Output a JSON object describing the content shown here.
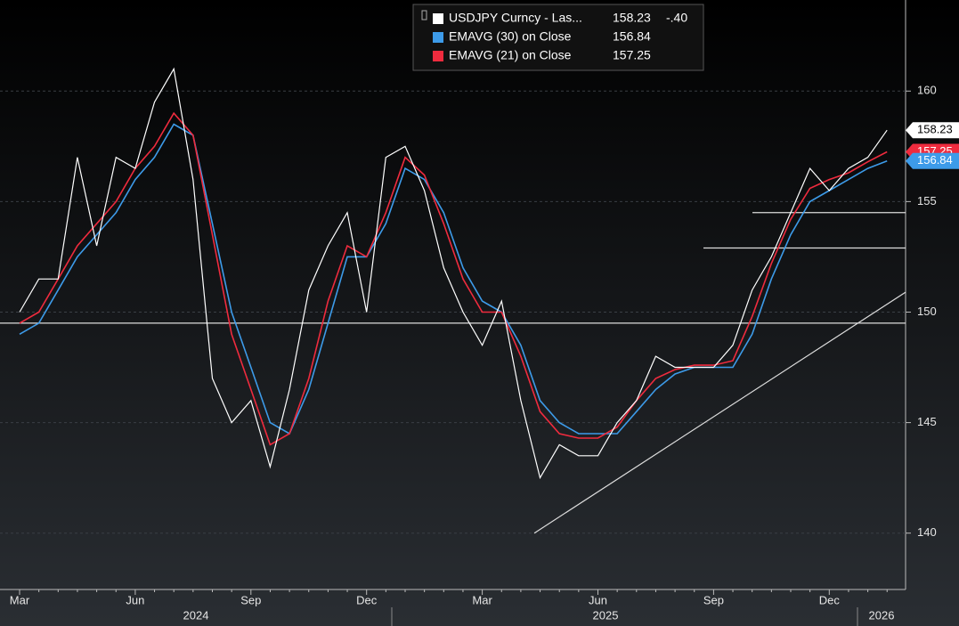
{
  "chart_data": {
    "type": "line",
    "categories": [
      "Mar",
      null,
      null,
      null,
      null,
      null,
      "Jun",
      null,
      null,
      null,
      null,
      null,
      "Sep",
      null,
      null,
      null,
      null,
      null,
      "Dec",
      null,
      null,
      null,
      null,
      null,
      "Mar",
      null,
      null,
      null,
      null,
      null,
      "Jun",
      null,
      null,
      null,
      null,
      null,
      "Sep",
      null,
      null,
      null,
      null,
      null,
      "Dec",
      null,
      null,
      null
    ],
    "years": [
      "2024",
      "2025",
      "2026"
    ],
    "series": [
      {
        "name": "USDJPY Curncy - Las...",
        "color": "#ffffff",
        "change": {
          "value": -0.4,
          "label": "-.40"
        },
        "values": [
          150,
          151.5,
          151.5,
          157,
          153,
          157,
          156.5,
          159.5,
          161,
          156,
          147,
          145,
          146,
          143,
          146.5,
          151,
          153,
          154.5,
          150,
          157,
          157.5,
          155.5,
          152,
          150,
          148.5,
          150.5,
          146,
          142.5,
          144,
          143.5,
          143.5,
          145,
          146,
          148,
          147.5,
          147.5,
          147.5,
          148.5,
          151,
          152.5,
          154.5,
          156.5,
          155.5,
          156.5,
          157,
          158.23
        ]
      },
      {
        "name": "EMAVG (30) on Close",
        "color": "#3d9be9",
        "values": [
          149,
          149.5,
          151,
          152.5,
          153.5,
          154.5,
          156,
          157,
          158.5,
          158,
          154,
          150,
          147.5,
          145,
          144.5,
          146.5,
          149.5,
          152.5,
          152.5,
          154,
          156.5,
          156,
          154.5,
          152,
          150.5,
          150,
          148.5,
          146,
          145,
          144.5,
          144.5,
          144.5,
          145.5,
          146.5,
          147.2,
          147.5,
          147.5,
          147.5,
          149,
          151.5,
          153.5,
          155,
          155.5,
          156,
          156.5,
          156.84
        ]
      },
      {
        "name": "EMAVG (21) on Close",
        "color": "#ef2b3e",
        "values": [
          149.5,
          150,
          151.5,
          153,
          154,
          155,
          156.5,
          157.5,
          159,
          158,
          153.5,
          149,
          146.5,
          144,
          144.5,
          147,
          150.5,
          153,
          152.5,
          154.5,
          157,
          156.2,
          154,
          151.5,
          150,
          150,
          148,
          145.5,
          144.5,
          144.3,
          144.3,
          144.8,
          146,
          147,
          147.4,
          147.6,
          147.6,
          147.8,
          149.8,
          152.2,
          154.2,
          155.6,
          156,
          156.3,
          156.8,
          157.25
        ]
      }
    ],
    "levels": [
      149.5,
      152.9,
      154.5
    ],
    "trendline": [
      140,
      150.9
    ],
    "ylim": [
      137.45,
      164.12
    ],
    "yticks": [
      140,
      145,
      150,
      155,
      160
    ],
    "grid": true
  }
}
